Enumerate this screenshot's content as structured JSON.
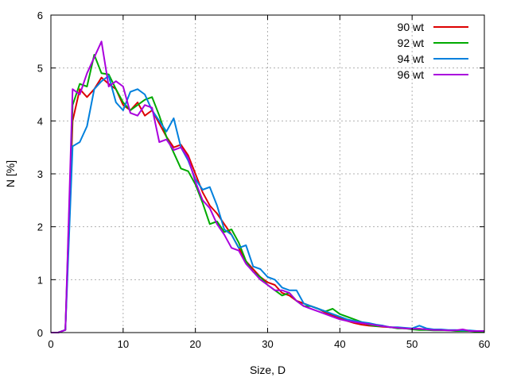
{
  "chart_data": {
    "type": "line",
    "title": "",
    "xlabel": "Size, D",
    "ylabel": "N [%]",
    "xlim": [
      0,
      60
    ],
    "ylim": [
      0,
      6
    ],
    "xticks": [
      0,
      10,
      20,
      30,
      40,
      50,
      60
    ],
    "yticks": [
      0,
      1,
      2,
      3,
      4,
      5,
      6
    ],
    "grid": true,
    "legend_position": "top-right",
    "series": [
      {
        "name": "90 wt",
        "color": "#dd0000",
        "x": [
          0,
          1,
          2,
          3,
          4,
          5,
          6,
          7,
          8,
          9,
          10,
          11,
          12,
          13,
          14,
          15,
          16,
          17,
          18,
          19,
          20,
          21,
          22,
          23,
          24,
          25,
          26,
          27,
          28,
          29,
          30,
          31,
          32,
          33,
          34,
          35,
          36,
          37,
          38,
          39,
          40,
          41,
          42,
          43,
          44,
          45,
          46,
          47,
          48,
          49,
          50,
          51,
          52,
          53,
          54,
          55,
          56,
          57,
          58,
          59,
          60
        ],
        "values": [
          0,
          0,
          0.05,
          4.0,
          4.6,
          4.45,
          4.6,
          4.82,
          4.7,
          4.6,
          4.3,
          4.2,
          4.35,
          4.1,
          4.2,
          3.95,
          3.7,
          3.5,
          3.55,
          3.35,
          3.0,
          2.65,
          2.4,
          2.25,
          2.05,
          1.85,
          1.6,
          1.35,
          1.2,
          1.05,
          0.95,
          0.9,
          0.75,
          0.7,
          0.6,
          0.55,
          0.5,
          0.45,
          0.38,
          0.32,
          0.27,
          0.22,
          0.18,
          0.15,
          0.13,
          0.12,
          0.11,
          0.1,
          0.09,
          0.08,
          0.07,
          0.07,
          0.06,
          0.05,
          0.05,
          0.04,
          0.04,
          0.04,
          0.03,
          0.03,
          0.03
        ]
      },
      {
        "name": "92 wt",
        "color": "#00aa00",
        "x": [
          0,
          1,
          2,
          3,
          4,
          5,
          6,
          7,
          8,
          9,
          10,
          11,
          12,
          13,
          14,
          15,
          16,
          17,
          18,
          19,
          20,
          21,
          22,
          23,
          24,
          25,
          26,
          27,
          28,
          29,
          30,
          31,
          32,
          33,
          34,
          35,
          36,
          37,
          38,
          39,
          40,
          41,
          42,
          43,
          44,
          45,
          46,
          47,
          48,
          49,
          50,
          51,
          52,
          53,
          54,
          55,
          56,
          57,
          58,
          59,
          60
        ],
        "values": [
          0,
          0,
          0.05,
          4.3,
          4.7,
          4.65,
          5.25,
          4.9,
          4.88,
          4.6,
          4.35,
          4.2,
          4.3,
          4.4,
          4.45,
          4.1,
          3.7,
          3.4,
          3.1,
          3.05,
          2.8,
          2.45,
          2.05,
          2.1,
          1.9,
          1.95,
          1.7,
          1.35,
          1.15,
          1.05,
          0.9,
          0.8,
          0.7,
          0.75,
          0.6,
          0.5,
          0.5,
          0.45,
          0.4,
          0.45,
          0.35,
          0.3,
          0.25,
          0.2,
          0.15,
          0.12,
          0.12,
          0.1,
          0.08,
          0.08,
          0.06,
          0.05,
          0.05,
          0.04,
          0.04,
          0.04,
          0.03,
          0.03,
          0.03,
          0.02,
          0.02
        ]
      },
      {
        "name": "94 wt",
        "color": "#0080dd",
        "x": [
          0,
          1,
          2,
          3,
          4,
          5,
          6,
          7,
          8,
          9,
          10,
          11,
          12,
          13,
          14,
          15,
          16,
          17,
          18,
          19,
          20,
          21,
          22,
          23,
          24,
          25,
          26,
          27,
          28,
          29,
          30,
          31,
          32,
          33,
          34,
          35,
          36,
          37,
          38,
          39,
          40,
          41,
          42,
          43,
          44,
          45,
          46,
          47,
          48,
          49,
          50,
          51,
          52,
          53,
          54,
          55,
          56,
          57,
          58,
          59,
          60
        ],
        "values": [
          0,
          0,
          0.05,
          3.52,
          3.6,
          3.9,
          4.6,
          4.75,
          4.85,
          4.35,
          4.2,
          4.55,
          4.6,
          4.5,
          4.2,
          4.0,
          3.8,
          4.05,
          3.5,
          3.25,
          2.9,
          2.7,
          2.75,
          2.4,
          1.95,
          1.85,
          1.6,
          1.65,
          1.25,
          1.2,
          1.05,
          1.0,
          0.85,
          0.8,
          0.8,
          0.55,
          0.5,
          0.45,
          0.4,
          0.35,
          0.3,
          0.25,
          0.22,
          0.2,
          0.18,
          0.15,
          0.13,
          0.1,
          0.1,
          0.09,
          0.08,
          0.13,
          0.08,
          0.06,
          0.06,
          0.05,
          0.05,
          0.04,
          0.04,
          0.03,
          0.03
        ]
      },
      {
        "name": "96 wt",
        "color": "#aa00dd",
        "x": [
          0,
          1,
          2,
          3,
          4,
          5,
          6,
          7,
          8,
          9,
          10,
          11,
          12,
          13,
          14,
          15,
          16,
          17,
          18,
          19,
          20,
          21,
          22,
          23,
          24,
          25,
          26,
          27,
          28,
          29,
          30,
          31,
          32,
          33,
          34,
          35,
          36,
          37,
          38,
          39,
          40,
          41,
          42,
          43,
          44,
          45,
          46,
          47,
          48,
          49,
          50,
          51,
          52,
          53,
          54,
          55,
          56,
          57,
          58,
          59,
          60
        ],
        "values": [
          0,
          0,
          0.05,
          4.6,
          4.5,
          4.9,
          5.2,
          5.5,
          4.65,
          4.75,
          4.65,
          4.15,
          4.1,
          4.3,
          4.25,
          3.6,
          3.65,
          3.45,
          3.5,
          3.3,
          2.85,
          2.5,
          2.35,
          2.05,
          1.85,
          1.6,
          1.55,
          1.3,
          1.15,
          1.0,
          0.9,
          0.8,
          0.8,
          0.75,
          0.6,
          0.5,
          0.45,
          0.4,
          0.35,
          0.3,
          0.25,
          0.22,
          0.2,
          0.18,
          0.16,
          0.14,
          0.12,
          0.1,
          0.09,
          0.08,
          0.07,
          0.07,
          0.06,
          0.05,
          0.05,
          0.04,
          0.04,
          0.06,
          0.03,
          0.03,
          0.03
        ]
      }
    ]
  }
}
